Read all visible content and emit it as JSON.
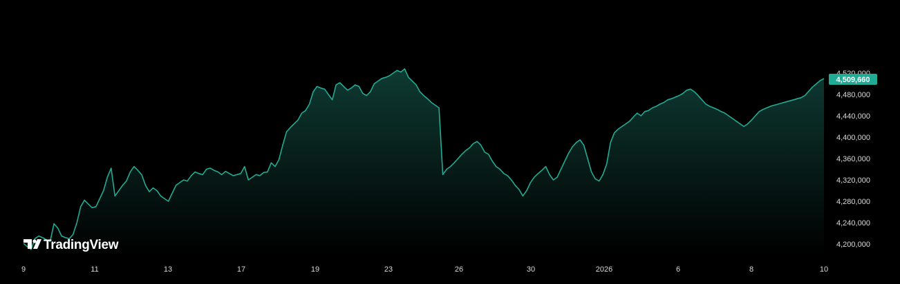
{
  "chart_data": {
    "type": "area",
    "title": "",
    "x_ticks": [
      "9",
      "11",
      "13",
      "17",
      "19",
      "23",
      "26",
      "30",
      "2026",
      "6",
      "8",
      "10"
    ],
    "y_ticks": [
      "4,520,000",
      "4,480,000",
      "4,440,000",
      "4,400,000",
      "4,360,000",
      "4,320,000",
      "4,280,000",
      "4,240,000",
      "4,200,000"
    ],
    "ylim": [
      4180000,
      4555000
    ],
    "last_price": "4,509,660",
    "watermark": "TradingView",
    "grid": false,
    "colors": {
      "line": "#22ab94",
      "fill_top": "#0e3a32",
      "badge": "#22ab94",
      "background": "#000000",
      "text": "#d9d9d9"
    },
    "series": [
      {
        "x": [
          0,
          2,
          4,
          6,
          8,
          10,
          12,
          14,
          16,
          18,
          20,
          22,
          24,
          26,
          28,
          30,
          32,
          34,
          36,
          38,
          40,
          42,
          44,
          46,
          48,
          50,
          52,
          54,
          56,
          58,
          60,
          62,
          64,
          66,
          68,
          70,
          72,
          74,
          76,
          78,
          80,
          82,
          84,
          86,
          88,
          90,
          92,
          94,
          96,
          98,
          100,
          102,
          104,
          106,
          108,
          110,
          112,
          114,
          116,
          118,
          120,
          122,
          124,
          126,
          128,
          130,
          132,
          134,
          136,
          138,
          140,
          142,
          144,
          146,
          148,
          150,
          152,
          154,
          156,
          158,
          160,
          162,
          164,
          166,
          168,
          170,
          172,
          174,
          176,
          178,
          180,
          182,
          184,
          186,
          188,
          190,
          192,
          194,
          196,
          198,
          200,
          202,
          204,
          206,
          208,
          210,
          212,
          214,
          216,
          218,
          220
        ],
        "values": [
          4201000,
          4195000,
          4190000,
          4210000,
          4215000,
          4212000,
          4208000,
          4205000,
          4238000,
          4230000,
          4215000,
          4212000,
          4210000,
          4218000,
          4240000,
          4270000,
          4282000,
          4275000,
          4268000,
          4270000,
          4285000,
          4300000,
          4325000,
          4342000,
          4290000,
          4300000,
          4310000,
          4318000,
          4335000,
          4345000,
          4338000,
          4330000,
          4310000,
          4298000,
          4305000,
          4300000,
          4290000,
          4285000,
          4280000,
          4295000,
          4310000,
          4315000,
          4320000,
          4318000,
          4328000,
          4335000,
          4332000,
          4330000,
          4340000,
          4342000,
          4338000,
          4335000,
          4330000,
          4336000,
          4332000,
          4328000,
          4330000,
          4332000,
          4345000,
          4320000,
          4325000,
          4330000,
          4328000,
          4334000,
          4335000,
          4352000,
          4345000,
          4358000,
          4385000,
          4410000,
          4418000,
          4425000,
          4432000,
          4445000,
          4450000,
          4462000,
          4485000,
          4495000,
          4492000,
          4490000,
          4480000,
          4470000,
          4498000,
          4502000,
          4495000,
          4488000,
          4492000,
          4498000,
          4495000,
          4482000,
          4478000,
          4485000,
          4500000,
          4505000,
          4510000,
          4512000,
          4515000,
          4520000,
          4525000,
          4522000,
          4528000,
          4512000,
          4505000,
          4498000,
          4485000,
          4478000,
          4472000,
          4465000,
          4460000,
          4455000,
          4330000
        ]
      },
      {
        "x": [
          220,
          222,
          224,
          226,
          228,
          230,
          232,
          234,
          236,
          238,
          240,
          242,
          244,
          246,
          248,
          250,
          252,
          254,
          256,
          258,
          260,
          262,
          264,
          266,
          268,
          270,
          272,
          274,
          276,
          278,
          280,
          282,
          284,
          286,
          288,
          290,
          292,
          294,
          296,
          298,
          300,
          302,
          304,
          306,
          308,
          310,
          312,
          314,
          316,
          318,
          320,
          322,
          324,
          326,
          328,
          330,
          332,
          334,
          336,
          338,
          340,
          342,
          344,
          346,
          348,
          350,
          352,
          354,
          356,
          358,
          360,
          362,
          364,
          366,
          368,
          370,
          372,
          374,
          376,
          378,
          380
        ],
        "values": [
          4330000,
          4340000,
          4345000,
          4352000,
          4360000,
          4368000,
          4375000,
          4380000,
          4388000,
          4392000,
          4385000,
          4372000,
          4368000,
          4355000,
          4345000,
          4340000,
          4332000,
          4328000,
          4320000,
          4310000,
          4302000,
          4290000,
          4300000,
          4315000,
          4325000,
          4332000,
          4338000,
          4345000,
          4330000,
          4320000,
          4325000,
          4340000,
          4355000,
          4370000,
          4382000,
          4390000,
          4395000,
          4385000,
          4360000,
          4335000,
          4322000,
          4318000,
          4330000,
          4350000,
          4390000,
          4408000,
          4415000,
          4420000,
          4425000,
          4430000,
          4438000,
          4445000,
          4440000,
          4448000,
          4450000,
          4455000,
          4458000,
          4462000,
          4465000,
          4470000,
          4472000,
          4475000,
          4478000,
          4482000,
          4488000,
          4490000,
          4485000,
          4478000,
          4470000,
          4462000,
          4458000,
          4455000,
          4452000,
          4448000,
          4445000,
          4440000,
          4435000,
          4430000,
          4425000,
          4420000,
          4425000
        ]
      },
      {
        "x": [
          380,
          382,
          384,
          386,
          388,
          390,
          392,
          394,
          396,
          398,
          400,
          402,
          404,
          406,
          408,
          410,
          412,
          414,
          416,
          418,
          420
        ],
        "values": [
          4425000,
          4432000,
          4440000,
          4448000,
          4452000,
          4455000,
          4458000,
          4460000,
          4462000,
          4464000,
          4466000,
          4468000,
          4470000,
          4472000,
          4474000,
          4478000,
          4486000,
          4494000,
          4500000,
          4506000,
          4509660
        ]
      }
    ]
  }
}
